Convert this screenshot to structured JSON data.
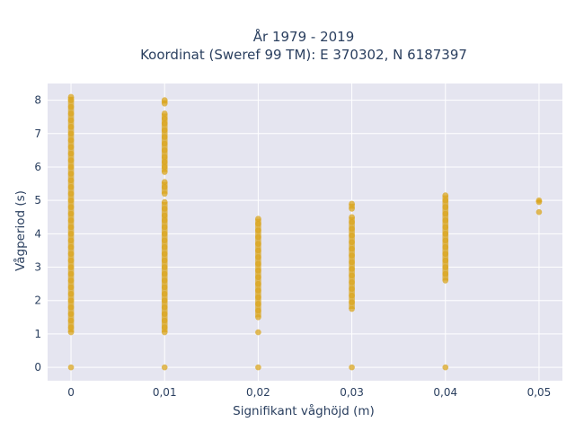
{
  "chart_data": {
    "type": "scatter",
    "title_line1": "År 1979 - 2019",
    "title_line2": "Koordinat (Sweref 99 TM): E 370302, N 6187397",
    "xlabel": "Signifikant våghöjd (m)",
    "ylabel": "Vågperiod (s)",
    "xlim": [
      -0.0025,
      0.0525
    ],
    "ylim": [
      -0.4,
      8.5
    ],
    "x_ticks": [
      0,
      0.01,
      0.02,
      0.03,
      0.04,
      0.05
    ],
    "x_tick_labels": [
      "0",
      "0,01",
      "0,02",
      "0,03",
      "0,04",
      "0,05"
    ],
    "y_ticks": [
      0,
      1,
      2,
      3,
      4,
      5,
      6,
      7,
      8
    ],
    "y_tick_labels": [
      "0",
      "1",
      "2",
      "3",
      "4",
      "5",
      "6",
      "7",
      "8"
    ],
    "grid": true,
    "marker_color": "#DAA520",
    "plot_background": "#E5E5F0",
    "series": [
      {
        "points": [
          {
            "x": 0,
            "y": 0
          },
          {
            "x": 0,
            "y": 1.05
          },
          {
            "x": 0,
            "y": 1.2
          },
          {
            "x": 0,
            "y": 1.4
          },
          {
            "x": 0,
            "y": 1.6
          },
          {
            "x": 0,
            "y": 1.8
          },
          {
            "x": 0,
            "y": 2.0
          },
          {
            "x": 0,
            "y": 2.2
          },
          {
            "x": 0,
            "y": 2.4
          },
          {
            "x": 0,
            "y": 2.6
          },
          {
            "x": 0,
            "y": 2.8
          },
          {
            "x": 0,
            "y": 3.0
          },
          {
            "x": 0,
            "y": 3.2
          },
          {
            "x": 0,
            "y": 3.4
          },
          {
            "x": 0,
            "y": 3.6
          },
          {
            "x": 0,
            "y": 3.8
          },
          {
            "x": 0,
            "y": 4.0
          },
          {
            "x": 0,
            "y": 4.2
          },
          {
            "x": 0,
            "y": 4.4
          },
          {
            "x": 0,
            "y": 4.6
          },
          {
            "x": 0,
            "y": 4.8
          },
          {
            "x": 0,
            "y": 5.0
          },
          {
            "x": 0,
            "y": 5.2
          },
          {
            "x": 0,
            "y": 5.4
          },
          {
            "x": 0,
            "y": 5.6
          },
          {
            "x": 0,
            "y": 5.8
          },
          {
            "x": 0,
            "y": 6.0
          },
          {
            "x": 0,
            "y": 6.2
          },
          {
            "x": 0,
            "y": 6.4
          },
          {
            "x": 0,
            "y": 6.6
          },
          {
            "x": 0,
            "y": 6.8
          },
          {
            "x": 0,
            "y": 7.0
          },
          {
            "x": 0,
            "y": 7.2
          },
          {
            "x": 0,
            "y": 7.4
          },
          {
            "x": 0,
            "y": 7.6
          },
          {
            "x": 0,
            "y": 7.8
          },
          {
            "x": 0,
            "y": 8.0
          },
          {
            "x": 0,
            "y": 8.1
          },
          {
            "x": 0.01,
            "y": 0
          },
          {
            "x": 0.01,
            "y": 1.05
          },
          {
            "x": 0.01,
            "y": 1.2
          },
          {
            "x": 0.01,
            "y": 1.4
          },
          {
            "x": 0.01,
            "y": 1.6
          },
          {
            "x": 0.01,
            "y": 1.8
          },
          {
            "x": 0.01,
            "y": 2.0
          },
          {
            "x": 0.01,
            "y": 2.2
          },
          {
            "x": 0.01,
            "y": 2.4
          },
          {
            "x": 0.01,
            "y": 2.6
          },
          {
            "x": 0.01,
            "y": 2.8
          },
          {
            "x": 0.01,
            "y": 3.0
          },
          {
            "x": 0.01,
            "y": 3.2
          },
          {
            "x": 0.01,
            "y": 3.4
          },
          {
            "x": 0.01,
            "y": 3.6
          },
          {
            "x": 0.01,
            "y": 3.8
          },
          {
            "x": 0.01,
            "y": 4.0
          },
          {
            "x": 0.01,
            "y": 4.2
          },
          {
            "x": 0.01,
            "y": 4.4
          },
          {
            "x": 0.01,
            "y": 4.55
          },
          {
            "x": 0.01,
            "y": 4.75
          },
          {
            "x": 0.01,
            "y": 4.95
          },
          {
            "x": 0.01,
            "y": 5.2
          },
          {
            "x": 0.01,
            "y": 5.4
          },
          {
            "x": 0.01,
            "y": 5.55
          },
          {
            "x": 0.01,
            "y": 5.85
          },
          {
            "x": 0.01,
            "y": 6.0
          },
          {
            "x": 0.01,
            "y": 6.15
          },
          {
            "x": 0.01,
            "y": 6.3
          },
          {
            "x": 0.01,
            "y": 6.5
          },
          {
            "x": 0.01,
            "y": 6.7
          },
          {
            "x": 0.01,
            "y": 6.9
          },
          {
            "x": 0.01,
            "y": 7.1
          },
          {
            "x": 0.01,
            "y": 7.3
          },
          {
            "x": 0.01,
            "y": 7.45
          },
          {
            "x": 0.01,
            "y": 7.6
          },
          {
            "x": 0.01,
            "y": 7.9
          },
          {
            "x": 0.01,
            "y": 8.0
          },
          {
            "x": 0.02,
            "y": 0
          },
          {
            "x": 0.02,
            "y": 1.05
          },
          {
            "x": 0.02,
            "y": 1.5
          },
          {
            "x": 0.02,
            "y": 1.7
          },
          {
            "x": 0.02,
            "y": 1.9
          },
          {
            "x": 0.02,
            "y": 2.1
          },
          {
            "x": 0.02,
            "y": 2.3
          },
          {
            "x": 0.02,
            "y": 2.5
          },
          {
            "x": 0.02,
            "y": 2.7
          },
          {
            "x": 0.02,
            "y": 2.9
          },
          {
            "x": 0.02,
            "y": 3.1
          },
          {
            "x": 0.02,
            "y": 3.3
          },
          {
            "x": 0.02,
            "y": 3.5
          },
          {
            "x": 0.02,
            "y": 3.7
          },
          {
            "x": 0.02,
            "y": 3.9
          },
          {
            "x": 0.02,
            "y": 4.1
          },
          {
            "x": 0.02,
            "y": 4.3
          },
          {
            "x": 0.02,
            "y": 4.45
          },
          {
            "x": 0.03,
            "y": 0
          },
          {
            "x": 0.03,
            "y": 1.75
          },
          {
            "x": 0.03,
            "y": 1.95
          },
          {
            "x": 0.03,
            "y": 2.15
          },
          {
            "x": 0.03,
            "y": 2.35
          },
          {
            "x": 0.03,
            "y": 2.55
          },
          {
            "x": 0.03,
            "y": 2.75
          },
          {
            "x": 0.03,
            "y": 2.95
          },
          {
            "x": 0.03,
            "y": 3.15
          },
          {
            "x": 0.03,
            "y": 3.35
          },
          {
            "x": 0.03,
            "y": 3.55
          },
          {
            "x": 0.03,
            "y": 3.75
          },
          {
            "x": 0.03,
            "y": 3.95
          },
          {
            "x": 0.03,
            "y": 4.15
          },
          {
            "x": 0.03,
            "y": 4.35
          },
          {
            "x": 0.03,
            "y": 4.5
          },
          {
            "x": 0.03,
            "y": 4.75
          },
          {
            "x": 0.03,
            "y": 4.9
          },
          {
            "x": 0.04,
            "y": 0
          },
          {
            "x": 0.04,
            "y": 2.6
          },
          {
            "x": 0.04,
            "y": 2.8
          },
          {
            "x": 0.04,
            "y": 3.0
          },
          {
            "x": 0.04,
            "y": 3.2
          },
          {
            "x": 0.04,
            "y": 3.4
          },
          {
            "x": 0.04,
            "y": 3.6
          },
          {
            "x": 0.04,
            "y": 3.8
          },
          {
            "x": 0.04,
            "y": 4.0
          },
          {
            "x": 0.04,
            "y": 4.2
          },
          {
            "x": 0.04,
            "y": 4.4
          },
          {
            "x": 0.04,
            "y": 4.6
          },
          {
            "x": 0.04,
            "y": 4.8
          },
          {
            "x": 0.04,
            "y": 5.0
          },
          {
            "x": 0.04,
            "y": 5.15
          },
          {
            "x": 0.05,
            "y": 4.65
          },
          {
            "x": 0.05,
            "y": 4.95
          },
          {
            "x": 0.05,
            "y": 5.0
          }
        ]
      }
    ]
  }
}
